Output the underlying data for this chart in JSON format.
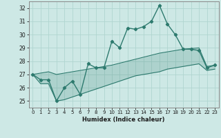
{
  "xlabel": "Humidex (Indice chaleur)",
  "x_values": [
    0,
    1,
    2,
    3,
    4,
    5,
    6,
    7,
    8,
    9,
    10,
    11,
    12,
    13,
    14,
    15,
    16,
    17,
    18,
    19,
    20,
    21,
    22,
    23
  ],
  "main_line": [
    27.0,
    26.6,
    26.6,
    25.0,
    26.0,
    26.5,
    25.5,
    27.8,
    27.5,
    27.5,
    29.5,
    29.0,
    30.5,
    30.4,
    30.6,
    31.0,
    32.2,
    30.8,
    30.0,
    28.9,
    28.9,
    28.8,
    27.5,
    27.7
  ],
  "upper_line": [
    27.0,
    27.1,
    27.2,
    27.0,
    27.1,
    27.2,
    27.3,
    27.4,
    27.5,
    27.6,
    27.7,
    27.85,
    28.0,
    28.15,
    28.3,
    28.45,
    28.6,
    28.7,
    28.8,
    28.9,
    28.95,
    29.0,
    27.6,
    27.7
  ],
  "lower_line": [
    27.0,
    26.3,
    26.3,
    25.0,
    25.1,
    25.3,
    25.5,
    25.7,
    25.9,
    26.1,
    26.3,
    26.5,
    26.7,
    26.9,
    27.0,
    27.1,
    27.2,
    27.4,
    27.5,
    27.6,
    27.7,
    27.8,
    27.3,
    27.4
  ],
  "ylim": [
    24.5,
    32.5
  ],
  "yticks": [
    25,
    26,
    27,
    28,
    29,
    30,
    31,
    32
  ],
  "line_color": "#2d7a6e",
  "bg_color": "#cde8e5",
  "grid_color": "#b0d5d0",
  "spine_color": "#888888"
}
